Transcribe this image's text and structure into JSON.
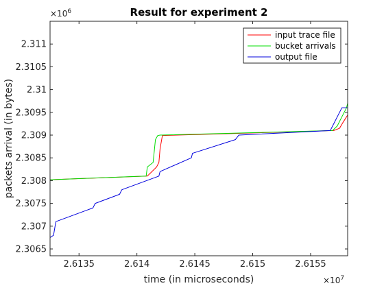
{
  "chart_data": {
    "type": "line",
    "title": "Result for experiment 2",
    "xlabel": "time (in microseconds)",
    "ylabel": "packets arrival (in bytes)",
    "x_exponent_label": "×10",
    "x_exponent": "7",
    "y_exponent_label": "×10",
    "y_exponent": "6",
    "xlim": [
      26132500,
      26158200
    ],
    "ylim": [
      2306350,
      2311500
    ],
    "x_ticks": [
      26135000,
      26140000,
      26145000,
      26150000,
      26155000
    ],
    "x_tick_labels": [
      "2.6135",
      "2.614",
      "2.6145",
      "2.615",
      "2.6155"
    ],
    "y_ticks": [
      2306500,
      2307000,
      2307500,
      2308000,
      2308500,
      2309000,
      2309500,
      2310000,
      2310500,
      2311000
    ],
    "y_tick_labels": [
      "2.3065",
      "2.307",
      "2.3075",
      "2.308",
      "2.3085",
      "2.309",
      "2.3095",
      "2.31",
      "2.3105",
      "2.311"
    ],
    "grid": false,
    "legend_position": "top-right",
    "series": [
      {
        "name": "input trace file",
        "color": "#ff0000",
        "x": [
          26132500,
          26140900,
          26141100,
          26141700,
          26141900,
          26142000,
          26142200,
          26157000,
          26157500,
          26157800,
          26158200
        ],
        "y": [
          2308020,
          2308100,
          2308150,
          2308300,
          2308400,
          2308700,
          2308990,
          2309100,
          2309150,
          2309280,
          2309440
        ]
      },
      {
        "name": "bucket arrivals",
        "color": "#00dd00",
        "x": [
          26132500,
          26140800,
          26140900,
          26141400,
          26141600,
          26141800,
          26142000,
          26156900,
          26157300,
          26157700,
          26158100,
          26158200
        ],
        "y": [
          2308020,
          2308100,
          2308300,
          2308400,
          2308900,
          2308990,
          2309000,
          2309100,
          2309200,
          2309400,
          2309600,
          2309700
        ]
      },
      {
        "name": "output file",
        "color": "#0000dd",
        "x": [
          26132500,
          26132800,
          26133000,
          26136200,
          26136400,
          26138500,
          26138700,
          26141900,
          26142000,
          26144700,
          26144800,
          26148500,
          26148800,
          26156700,
          26157500,
          26157700,
          26158200
        ],
        "y": [
          2306750,
          2306800,
          2307100,
          2307400,
          2307500,
          2307700,
          2307800,
          2308100,
          2308200,
          2308500,
          2308600,
          2308900,
          2309000,
          2309100,
          2309500,
          2309600,
          2309600
        ]
      }
    ]
  }
}
